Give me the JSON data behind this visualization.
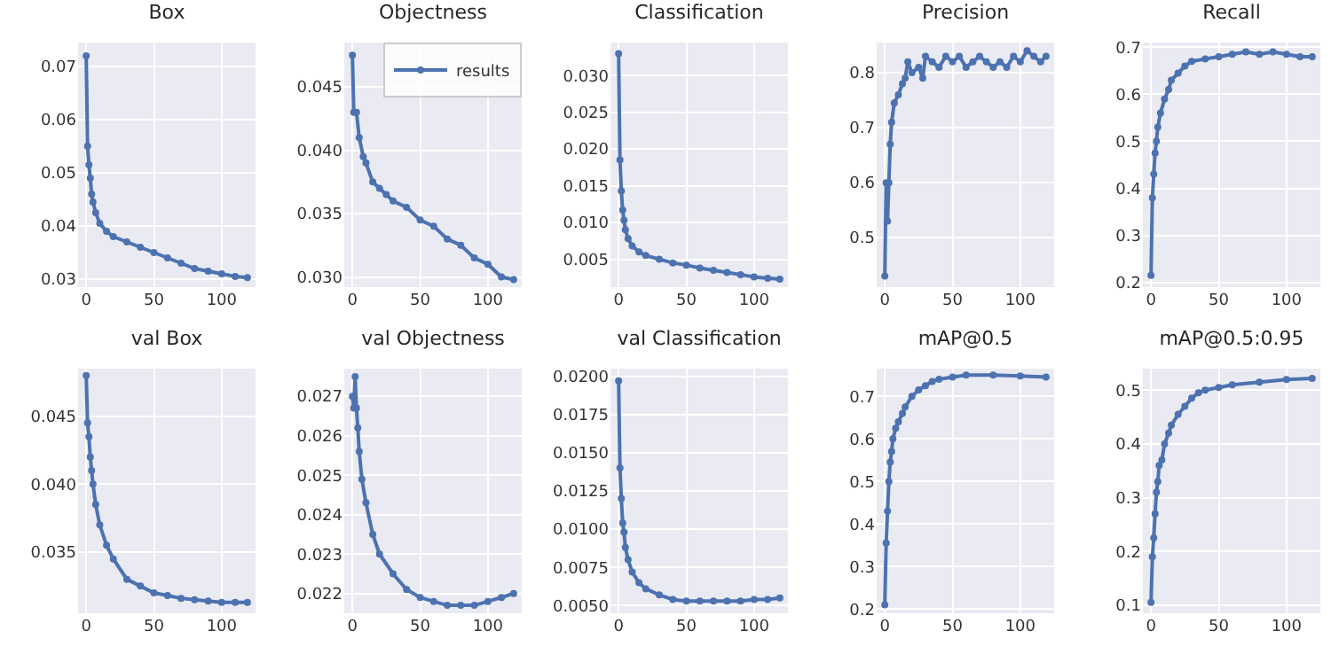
{
  "chart_data": [
    {
      "type": "line",
      "title": "Box",
      "x": [
        0,
        1,
        2,
        3,
        4,
        5,
        7,
        10,
        15,
        20,
        30,
        40,
        50,
        60,
        70,
        80,
        90,
        100,
        110,
        119
      ],
      "xlim": [
        -6,
        125
      ],
      "xticks": [
        0,
        50,
        100
      ],
      "ylim": [
        0.0285,
        0.0745
      ],
      "yticks": [
        0.03,
        0.04,
        0.05,
        0.06,
        0.07
      ],
      "grid": true,
      "marker": "circle",
      "series": [
        {
          "color": "#4c72b0",
          "values": [
            0.072,
            0.055,
            0.0515,
            0.049,
            0.046,
            0.0445,
            0.0425,
            0.0405,
            0.039,
            0.038,
            0.037,
            0.036,
            0.035,
            0.034,
            0.033,
            0.032,
            0.0315,
            0.031,
            0.0305,
            0.0303
          ]
        }
      ]
    },
    {
      "type": "line",
      "title": "Objectness",
      "x": [
        0,
        1,
        3,
        5,
        8,
        10,
        15,
        20,
        25,
        30,
        40,
        50,
        60,
        70,
        80,
        90,
        100,
        110,
        119
      ],
      "xlim": [
        -6,
        125
      ],
      "xticks": [
        0,
        50,
        100
      ],
      "ylim": [
        0.0292,
        0.0485
      ],
      "yticks": [
        {
          "value": 0.03,
          "label": "0.030"
        },
        0.035,
        {
          "value": 0.04,
          "label": "0.040"
        },
        0.045
      ],
      "grid": true,
      "marker": "circle",
      "legend": "top right",
      "series": [
        {
          "name": "results",
          "color": "#4c72b0",
          "values": [
            0.0475,
            0.043,
            0.043,
            0.041,
            0.0395,
            0.039,
            0.0375,
            0.037,
            0.0365,
            0.036,
            0.0355,
            0.0345,
            0.034,
            0.033,
            0.0325,
            0.0315,
            0.031,
            0.03,
            0.0298
          ]
        }
      ]
    },
    {
      "type": "line",
      "title": "Classification",
      "x": [
        0,
        1,
        2,
        3,
        4,
        5,
        7,
        10,
        15,
        20,
        30,
        40,
        50,
        60,
        70,
        80,
        90,
        100,
        110,
        119
      ],
      "xlim": [
        -6,
        125
      ],
      "xticks": [
        0,
        50,
        100
      ],
      "ylim": [
        0.0012,
        0.0345
      ],
      "yticks": [
        0.005,
        {
          "value": 0.01,
          "label": "0.010"
        },
        0.015,
        {
          "value": 0.02,
          "label": "0.020"
        },
        0.025,
        {
          "value": 0.03,
          "label": "0.030"
        }
      ],
      "grid": true,
      "marker": "circle",
      "series": [
        {
          "color": "#4c72b0",
          "values": [
            0.033,
            0.0185,
            0.0143,
            0.0117,
            0.0103,
            0.009,
            0.0078,
            0.0068,
            0.006,
            0.0055,
            0.005,
            0.0045,
            0.0042,
            0.0038,
            0.0035,
            0.0032,
            0.0029,
            0.0026,
            0.0024,
            0.0023
          ]
        }
      ]
    },
    {
      "type": "line",
      "title": "Precision",
      "x": [
        0,
        1,
        2,
        3,
        4,
        5,
        7,
        10,
        13,
        15,
        17,
        20,
        25,
        28,
        30,
        35,
        40,
        45,
        50,
        55,
        60,
        65,
        70,
        75,
        80,
        85,
        90,
        95,
        100,
        105,
        110,
        115,
        119
      ],
      "xlim": [
        -6,
        125
      ],
      "xticks": [
        0,
        50,
        100
      ],
      "ylim": [
        0.41,
        0.855
      ],
      "yticks": [
        0.5,
        0.6,
        0.7,
        0.8
      ],
      "grid": true,
      "marker": "circle",
      "series": [
        {
          "color": "#4c72b0",
          "values": [
            0.43,
            0.6,
            0.53,
            0.6,
            0.67,
            0.71,
            0.745,
            0.76,
            0.78,
            0.79,
            0.82,
            0.8,
            0.81,
            0.79,
            0.83,
            0.82,
            0.81,
            0.83,
            0.82,
            0.83,
            0.81,
            0.82,
            0.83,
            0.82,
            0.81,
            0.82,
            0.81,
            0.83,
            0.82,
            0.84,
            0.83,
            0.82,
            0.83
          ]
        }
      ]
    },
    {
      "type": "line",
      "title": "Recall",
      "x": [
        0,
        1,
        2,
        3,
        4,
        5,
        7,
        10,
        13,
        15,
        20,
        25,
        30,
        40,
        50,
        60,
        70,
        80,
        90,
        100,
        110,
        119
      ],
      "xlim": [
        -6,
        125
      ],
      "xticks": [
        0,
        50,
        100
      ],
      "ylim": [
        0.19,
        0.71
      ],
      "yticks": [
        0.2,
        0.3,
        0.4,
        0.5,
        0.6,
        0.7
      ],
      "grid": true,
      "marker": "circle",
      "series": [
        {
          "color": "#4c72b0",
          "values": [
            0.215,
            0.38,
            0.43,
            0.475,
            0.5,
            0.53,
            0.56,
            0.59,
            0.61,
            0.63,
            0.645,
            0.66,
            0.67,
            0.675,
            0.68,
            0.685,
            0.69,
            0.685,
            0.69,
            0.685,
            0.68,
            0.68
          ]
        }
      ]
    },
    {
      "type": "line",
      "title": "val Box",
      "x": [
        0,
        1,
        2,
        3,
        4,
        5,
        7,
        10,
        15,
        20,
        30,
        40,
        50,
        60,
        70,
        80,
        90,
        100,
        110,
        119
      ],
      "xlim": [
        -6,
        125
      ],
      "xticks": [
        0,
        50,
        100
      ],
      "ylim": [
        0.0305,
        0.0485
      ],
      "yticks": [
        0.035,
        {
          "value": 0.04,
          "label": "0.040"
        },
        0.045
      ],
      "grid": true,
      "marker": "circle",
      "series": [
        {
          "color": "#4c72b0",
          "values": [
            0.048,
            0.0445,
            0.0435,
            0.042,
            0.041,
            0.04,
            0.0385,
            0.037,
            0.0355,
            0.0345,
            0.033,
            0.0325,
            0.032,
            0.0318,
            0.0316,
            0.0315,
            0.0314,
            0.0313,
            0.0313,
            0.0313
          ]
        }
      ]
    },
    {
      "type": "line",
      "title": "val Objectness",
      "x": [
        0,
        1,
        2,
        3,
        4,
        5,
        7,
        10,
        15,
        20,
        30,
        40,
        50,
        60,
        70,
        80,
        90,
        100,
        110,
        119
      ],
      "xlim": [
        -6,
        125
      ],
      "xticks": [
        0,
        50,
        100
      ],
      "ylim": [
        0.0215,
        0.0277
      ],
      "yticks": [
        0.022,
        0.023,
        0.024,
        0.025,
        0.026,
        0.027
      ],
      "grid": true,
      "marker": "circle",
      "series": [
        {
          "color": "#4c72b0",
          "values": [
            0.027,
            0.0267,
            0.0275,
            0.0267,
            0.0262,
            0.0256,
            0.0249,
            0.0243,
            0.0235,
            0.023,
            0.0225,
            0.0221,
            0.0219,
            0.0218,
            0.0217,
            0.0217,
            0.0217,
            0.0218,
            0.0219,
            0.022
          ]
        }
      ]
    },
    {
      "type": "line",
      "title": "val Classification",
      "x": [
        0,
        1,
        2,
        3,
        4,
        5,
        7,
        10,
        15,
        20,
        30,
        40,
        50,
        60,
        70,
        80,
        90,
        100,
        110,
        119
      ],
      "xlim": [
        -6,
        125
      ],
      "xticks": [
        0,
        50,
        100
      ],
      "ylim": [
        0.0045,
        0.0205
      ],
      "yticks": [
        {
          "value": 0.005,
          "label": "0.0050"
        },
        0.0075,
        {
          "value": 0.01,
          "label": "0.0100"
        },
        0.0125,
        {
          "value": 0.015,
          "label": "0.0150"
        },
        0.0175,
        {
          "value": 0.02,
          "label": "0.0200"
        }
      ],
      "grid": true,
      "marker": "circle",
      "series": [
        {
          "color": "#4c72b0",
          "values": [
            0.0197,
            0.014,
            0.012,
            0.0104,
            0.0098,
            0.0088,
            0.008,
            0.0072,
            0.0065,
            0.0061,
            0.0057,
            0.0054,
            0.0053,
            0.0053,
            0.0053,
            0.0053,
            0.0053,
            0.0054,
            0.0054,
            0.0055
          ]
        }
      ]
    },
    {
      "type": "line",
      "title": "mAP@0.5",
      "x": [
        0,
        1,
        2,
        3,
        4,
        5,
        6,
        8,
        10,
        13,
        15,
        20,
        25,
        30,
        35,
        40,
        50,
        60,
        80,
        100,
        119
      ],
      "xlim": [
        -6,
        125
      ],
      "xticks": [
        0,
        50,
        100
      ],
      "ylim": [
        0.19,
        0.765
      ],
      "yticks": [
        0.2,
        0.3,
        0.4,
        0.5,
        0.6,
        0.7
      ],
      "grid": true,
      "marker": "circle",
      "series": [
        {
          "color": "#4c72b0",
          "values": [
            0.21,
            0.355,
            0.43,
            0.5,
            0.545,
            0.57,
            0.6,
            0.625,
            0.64,
            0.66,
            0.675,
            0.7,
            0.715,
            0.725,
            0.735,
            0.74,
            0.745,
            0.75,
            0.75,
            0.748,
            0.745
          ]
        }
      ]
    },
    {
      "type": "line",
      "title": "mAP@0.5:0.95",
      "x": [
        0,
        1,
        2,
        3,
        4,
        5,
        6,
        8,
        10,
        13,
        15,
        20,
        25,
        30,
        35,
        40,
        50,
        60,
        80,
        100,
        119
      ],
      "xlim": [
        -6,
        125
      ],
      "xticks": [
        0,
        50,
        100
      ],
      "ylim": [
        0.085,
        0.54
      ],
      "yticks": [
        0.1,
        0.2,
        0.3,
        0.4,
        0.5
      ],
      "grid": true,
      "marker": "circle",
      "series": [
        {
          "color": "#4c72b0",
          "values": [
            0.105,
            0.19,
            0.225,
            0.27,
            0.31,
            0.33,
            0.36,
            0.37,
            0.4,
            0.42,
            0.435,
            0.455,
            0.47,
            0.485,
            0.495,
            0.5,
            0.505,
            0.51,
            0.515,
            0.52,
            0.522
          ]
        }
      ]
    }
  ]
}
